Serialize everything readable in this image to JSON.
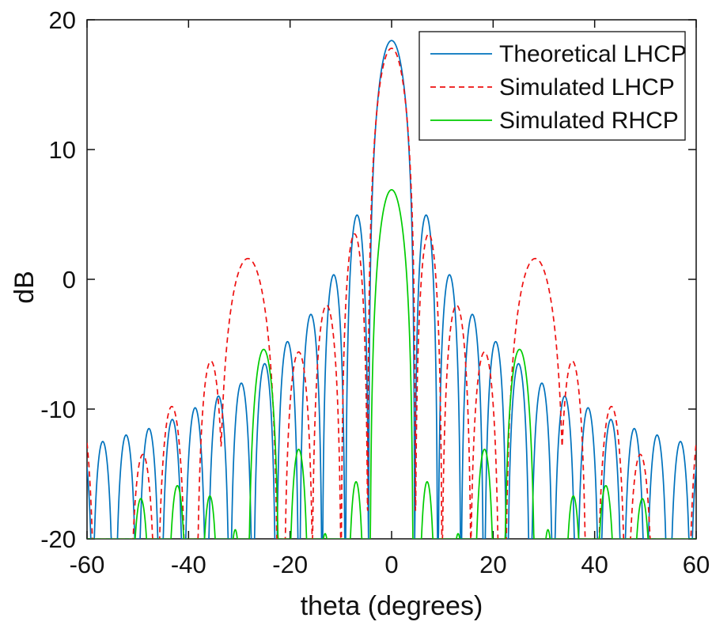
{
  "figure": {
    "background": "#ffffff",
    "axis_color": "#111111"
  },
  "axes": {
    "xlabel": "theta (degrees)",
    "ylabel": "dB",
    "xlim": [
      -60,
      60
    ],
    "ylim": [
      -20,
      20
    ],
    "xticks": [
      "-60",
      "-40",
      "-20",
      "0",
      "20",
      "40",
      "60"
    ],
    "yticks": [
      "-20",
      "-10",
      "0",
      "10",
      "20"
    ]
  },
  "legend": {
    "position": "upper-right",
    "entries": [
      {
        "label": "Theoretical LHCP",
        "color": "#0072BD",
        "style": "solid"
      },
      {
        "label": "Simulated LHCP",
        "color": "#EE1111",
        "style": "dashed"
      },
      {
        "label": "Simulated RHCP",
        "color": "#00CC00",
        "style": "solid"
      }
    ]
  },
  "chart_data": {
    "type": "line",
    "title": "",
    "xlabel": "theta (degrees)",
    "ylabel": "dB",
    "xlim": [
      -60,
      60
    ],
    "ylim": [
      -20,
      20
    ],
    "grid": false,
    "legend_position": "upper right",
    "x_units": "degrees",
    "y_units": "dB",
    "description": "Antenna array radiation patterns; each series is symmetric about theta=0 and is described by its measured lobes (center angle, peak level in dB, half-width in degrees to the adjacent nulls). Values below -20 dB are clipped by the axis.",
    "series": [
      {
        "name": "Theoretical LHCP",
        "color": "#0072BD",
        "line_style": "solid",
        "symmetric": true,
        "main_beam_peak_db": 18.4,
        "lobes": [
          {
            "theta_deg": 0.0,
            "peak_db": 18.4,
            "half_width_deg": 4.55
          },
          {
            "theta_deg": 6.8,
            "peak_db": 4.95,
            "half_width_deg": 2.3
          },
          {
            "theta_deg": 11.4,
            "peak_db": 0.35,
            "half_width_deg": 2.3
          },
          {
            "theta_deg": 15.9,
            "peak_db": -2.7,
            "half_width_deg": 2.3
          },
          {
            "theta_deg": 20.5,
            "peak_db": -4.8,
            "half_width_deg": 2.3
          },
          {
            "theta_deg": 25.0,
            "peak_db": -6.5,
            "half_width_deg": 2.3
          },
          {
            "theta_deg": 29.6,
            "peak_db": -8.0,
            "half_width_deg": 2.3
          },
          {
            "theta_deg": 34.1,
            "peak_db": -9.0,
            "half_width_deg": 2.3
          },
          {
            "theta_deg": 38.7,
            "peak_db": -9.9,
            "half_width_deg": 2.3
          },
          {
            "theta_deg": 43.2,
            "peak_db": -10.8,
            "half_width_deg": 2.3
          },
          {
            "theta_deg": 47.8,
            "peak_db": -11.5,
            "half_width_deg": 2.3
          },
          {
            "theta_deg": 52.3,
            "peak_db": -12.0,
            "half_width_deg": 2.3
          },
          {
            "theta_deg": 56.9,
            "peak_db": -12.5,
            "half_width_deg": 2.3
          },
          {
            "theta_deg": 60.9,
            "peak_db": -12.7,
            "half_width_deg": 2.3
          }
        ]
      },
      {
        "name": "Simulated LHCP",
        "color": "#EE1111",
        "line_style": "dashed",
        "symmetric": true,
        "main_beam_peak_db": 17.8,
        "lobes": [
          {
            "theta_deg": 0.0,
            "peak_db": 17.8,
            "half_width_deg": 4.75
          },
          {
            "theta_deg": 7.3,
            "peak_db": 3.5,
            "half_width_deg": 2.7
          },
          {
            "theta_deg": 12.8,
            "peak_db": -2.0,
            "half_width_deg": 3.0
          },
          {
            "theta_deg": 18.3,
            "peak_db": -5.6,
            "half_width_deg": 3.0
          },
          {
            "theta_deg": 28.3,
            "peak_db": 1.6,
            "half_width_deg": 6.0
          },
          {
            "theta_deg": 35.6,
            "peak_db": -6.3,
            "half_width_deg": 2.9
          },
          {
            "theta_deg": 43.3,
            "peak_db": -9.8,
            "half_width_deg": 3.0
          },
          {
            "theta_deg": 49.0,
            "peak_db": -13.5,
            "half_width_deg": 2.8
          },
          {
            "theta_deg": 61.5,
            "peak_db": -10.0,
            "half_width_deg": 3.2
          }
        ]
      },
      {
        "name": "Simulated RHCP",
        "color": "#00CC00",
        "line_style": "solid",
        "symmetric": true,
        "main_beam_peak_db": 6.9,
        "lobes": [
          {
            "theta_deg": 0.0,
            "peak_db": 6.9,
            "half_width_deg": 4.3
          },
          {
            "theta_deg": 7.0,
            "peak_db": -15.6,
            "half_width_deg": 1.9
          },
          {
            "theta_deg": 13.1,
            "peak_db": -19.6,
            "half_width_deg": 1.7
          },
          {
            "theta_deg": 18.3,
            "peak_db": -13.1,
            "half_width_deg": 2.2
          },
          {
            "theta_deg": 25.2,
            "peak_db": -5.4,
            "half_width_deg": 3.2
          },
          {
            "theta_deg": 30.8,
            "peak_db": -19.3,
            "half_width_deg": 1.6
          },
          {
            "theta_deg": 35.8,
            "peak_db": -16.7,
            "half_width_deg": 2.0
          },
          {
            "theta_deg": 42.2,
            "peak_db": -15.9,
            "half_width_deg": 2.2
          },
          {
            "theta_deg": 49.4,
            "peak_db": -16.9,
            "half_width_deg": 2.2
          }
        ]
      }
    ]
  }
}
